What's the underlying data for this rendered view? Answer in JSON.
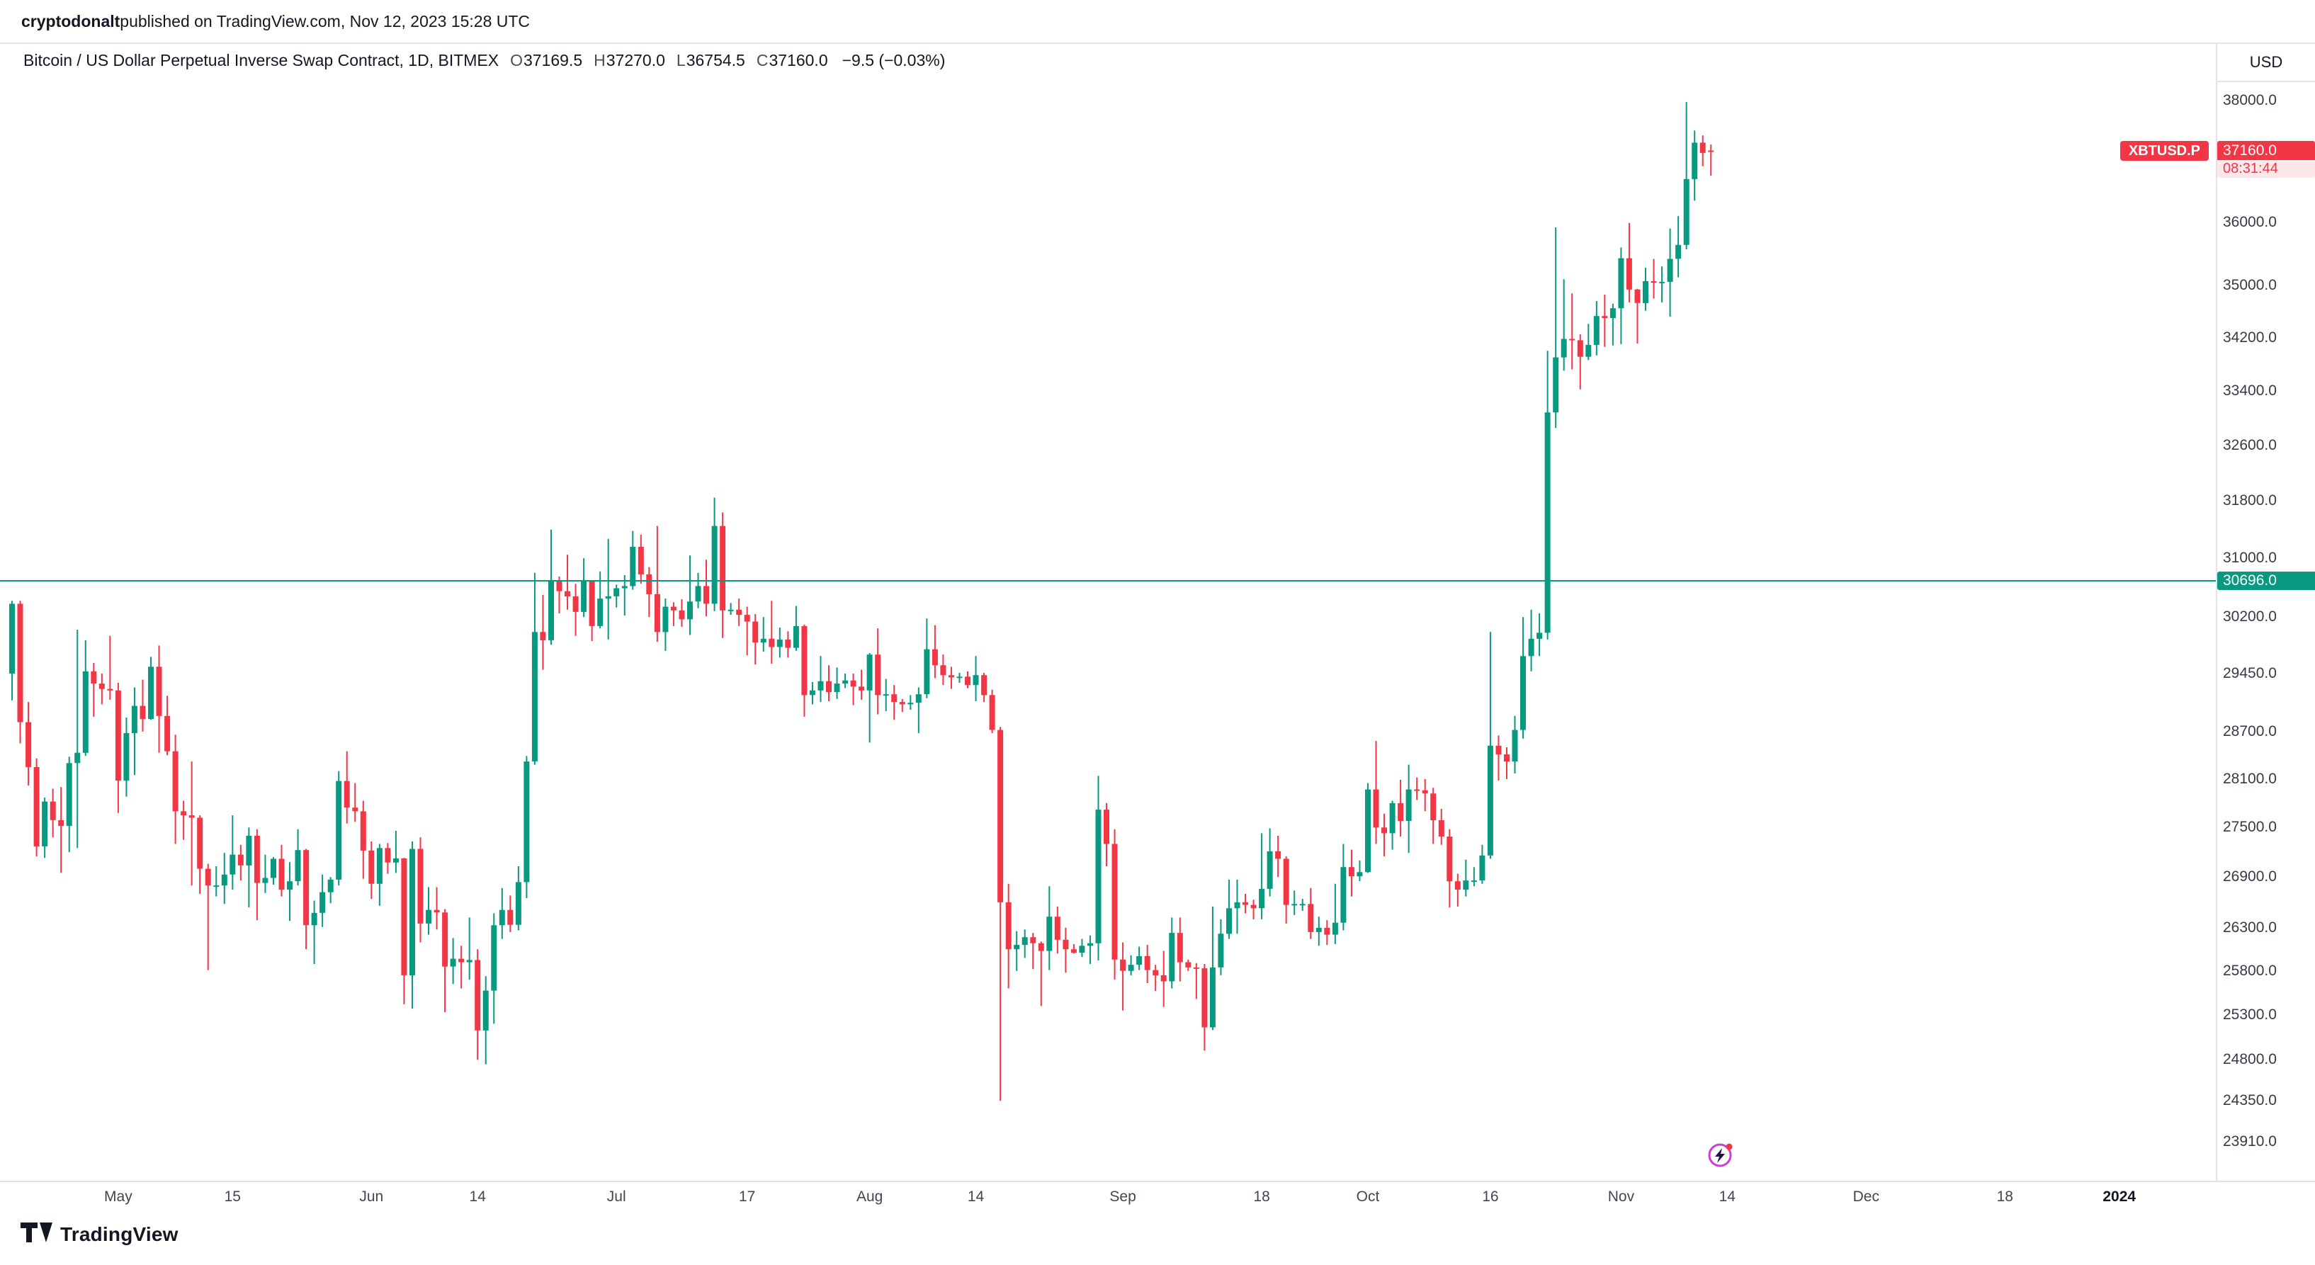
{
  "attribution": {
    "author": "cryptodonalt",
    "rest": " published on TradingView.com, Nov 12, 2023 15:28 UTC"
  },
  "header": {
    "title": "Bitcoin / US Dollar Perpetual Inverse Swap Contract, 1D, BITMEX",
    "ohlc": {
      "o_label": "O",
      "open": "37169.5",
      "h_label": "H",
      "high": "37270.0",
      "l_label": "L",
      "low": "36754.5",
      "c_label": "C",
      "close": "37160.0",
      "change": "−9.5 (−0.03%)"
    }
  },
  "price_axis": {
    "currency": "USD",
    "ticks": [
      "38000.0",
      "36000.0",
      "35000.0",
      "34200.0",
      "33400.0",
      "32600.0",
      "31800.0",
      "31000.0",
      "30200.0",
      "29450.0",
      "28700.0",
      "28100.0",
      "27500.0",
      "26900.0",
      "26300.0",
      "25800.0",
      "25300.0",
      "24800.0",
      "24350.0",
      "23910.0"
    ],
    "last_price_badge": {
      "symbol": "XBTUSD.P",
      "price": "37160.0",
      "countdown": "08:31:44",
      "value": 37160,
      "color": "#f23645"
    },
    "level_badge": {
      "price": "30696.0",
      "value": 30696,
      "color": "#089981"
    }
  },
  "time_axis": {
    "ticks": [
      {
        "label": "May",
        "day": 13
      },
      {
        "label": "15",
        "day": 27
      },
      {
        "label": "Jun",
        "day": 44
      },
      {
        "label": "14",
        "day": 57
      },
      {
        "label": "Jul",
        "day": 74
      },
      {
        "label": "17",
        "day": 90
      },
      {
        "label": "Aug",
        "day": 105
      },
      {
        "label": "14",
        "day": 118
      },
      {
        "label": "Sep",
        "day": 136
      },
      {
        "label": "18",
        "day": 153
      },
      {
        "label": "Oct",
        "day": 166
      },
      {
        "label": "16",
        "day": 181
      },
      {
        "label": "Nov",
        "day": 197
      },
      {
        "label": "14",
        "day": 210
      },
      {
        "label": "Dec",
        "day": 227
      },
      {
        "label": "18",
        "day": 244
      },
      {
        "label": "2024",
        "day": 258
      }
    ]
  },
  "footer": {
    "brand": "TradingView"
  },
  "chart_data": {
    "type": "candlestick",
    "symbol": "XBTUSD.P",
    "exchange": "BITMEX",
    "interval": "1D",
    "title": "Bitcoin / US Dollar Perpetual Inverse Swap Contract",
    "scale": "log",
    "ylim": [
      23500,
      39000
    ],
    "grid": false,
    "up_color": "#089981",
    "down_color": "#f23645",
    "hline": {
      "value": 30696,
      "label": "30696.0",
      "color": "#089981"
    },
    "last_price": 37160,
    "ohlc_format": [
      "open",
      "high",
      "low",
      "close"
    ],
    "ohlc": [
      [
        29450,
        30420,
        29100,
        30380
      ],
      [
        30380,
        30420,
        28550,
        28820
      ],
      [
        28820,
        29080,
        28020,
        28250
      ],
      [
        28250,
        28360,
        27150,
        27270
      ],
      [
        27270,
        27870,
        27130,
        27820
      ],
      [
        27820,
        27980,
        27380,
        27590
      ],
      [
        27590,
        28000,
        26950,
        27520
      ],
      [
        27520,
        28380,
        27200,
        28300
      ],
      [
        28300,
        30030,
        27250,
        28430
      ],
      [
        28430,
        29890,
        28390,
        29480
      ],
      [
        29480,
        29590,
        28890,
        29320
      ],
      [
        29320,
        29450,
        29050,
        29250
      ],
      [
        29250,
        29950,
        29110,
        29230
      ],
      [
        29230,
        29330,
        27680,
        28080
      ],
      [
        28080,
        28880,
        27880,
        28680
      ],
      [
        28680,
        29270,
        28150,
        29030
      ],
      [
        29030,
        29370,
        28700,
        28860
      ],
      [
        28860,
        29670,
        28850,
        29540
      ],
      [
        29540,
        29820,
        28430,
        28900
      ],
      [
        28900,
        29160,
        28400,
        28450
      ],
      [
        28450,
        28660,
        27300,
        27700
      ],
      [
        27700,
        27830,
        27350,
        27650
      ],
      [
        27650,
        28320,
        26800,
        27620
      ],
      [
        27620,
        27650,
        26700,
        27000
      ],
      [
        27000,
        27060,
        25810,
        26800
      ],
      [
        26800,
        27030,
        26670,
        26800
      ],
      [
        26800,
        27190,
        26580,
        26930
      ],
      [
        26930,
        27650,
        26750,
        27170
      ],
      [
        27170,
        27290,
        26860,
        27040
      ],
      [
        27040,
        27500,
        26540,
        27400
      ],
      [
        27400,
        27480,
        26390,
        26830
      ],
      [
        26830,
        27170,
        26710,
        26890
      ],
      [
        26890,
        27140,
        26810,
        27120
      ],
      [
        27120,
        27290,
        26670,
        26750
      ],
      [
        26750,
        27080,
        26380,
        26850
      ],
      [
        26850,
        27480,
        26800,
        27225
      ],
      [
        27225,
        27240,
        26050,
        26330
      ],
      [
        26330,
        26620,
        25880,
        26475
      ],
      [
        26475,
        26930,
        26310,
        26720
      ],
      [
        26720,
        26900,
        26590,
        26870
      ],
      [
        26870,
        28200,
        26800,
        28075
      ],
      [
        28075,
        28450,
        27550,
        27745
      ],
      [
        27745,
        28050,
        27570,
        27700
      ],
      [
        27700,
        27830,
        26880,
        27220
      ],
      [
        27220,
        27330,
        26640,
        26820
      ],
      [
        26820,
        27300,
        26560,
        27250
      ],
      [
        27250,
        27310,
        26940,
        27075
      ],
      [
        27075,
        27460,
        26950,
        27125
      ],
      [
        27125,
        27130,
        25420,
        25750
      ],
      [
        25750,
        27330,
        25370,
        27240
      ],
      [
        27240,
        27380,
        26130,
        26350
      ],
      [
        26350,
        26780,
        26220,
        26510
      ],
      [
        26510,
        26780,
        26280,
        26480
      ],
      [
        26480,
        26520,
        25330,
        25850
      ],
      [
        25850,
        26180,
        25650,
        25940
      ],
      [
        25940,
        26090,
        25600,
        25900
      ],
      [
        25900,
        26420,
        25700,
        25925
      ],
      [
        25925,
        26050,
        24800,
        25125
      ],
      [
        25125,
        25740,
        24750,
        25575
      ],
      [
        25575,
        26470,
        25200,
        26330
      ],
      [
        26330,
        26770,
        26170,
        26510
      ],
      [
        26510,
        26680,
        26250,
        26335
      ],
      [
        26335,
        27030,
        26270,
        26840
      ],
      [
        26840,
        28390,
        26650,
        28320
      ],
      [
        28320,
        30800,
        28280,
        30000
      ],
      [
        30000,
        30500,
        29500,
        29890
      ],
      [
        29890,
        31400,
        29830,
        30700
      ],
      [
        30700,
        30750,
        30250,
        30550
      ],
      [
        30550,
        31050,
        30300,
        30480
      ],
      [
        30480,
        30650,
        29950,
        30270
      ],
      [
        30270,
        31000,
        30200,
        30690
      ],
      [
        30690,
        30700,
        29880,
        30080
      ],
      [
        30080,
        30820,
        30050,
        30450
      ],
      [
        30450,
        31270,
        29900,
        30480
      ],
      [
        30480,
        30640,
        30330,
        30590
      ],
      [
        30590,
        30770,
        30220,
        30620
      ],
      [
        30620,
        31380,
        30570,
        31160
      ],
      [
        31160,
        31330,
        30650,
        30780
      ],
      [
        30780,
        30880,
        30200,
        30510
      ],
      [
        30510,
        31450,
        29870,
        30000
      ],
      [
        30000,
        30450,
        29750,
        30340
      ],
      [
        30340,
        30400,
        30080,
        30290
      ],
      [
        30290,
        30440,
        30070,
        30170
      ],
      [
        30170,
        31040,
        29960,
        30410
      ],
      [
        30410,
        30800,
        30320,
        30620
      ],
      [
        30620,
        30980,
        30210,
        30380
      ],
      [
        30380,
        31850,
        30280,
        31450
      ],
      [
        31450,
        31640,
        29920,
        30290
      ],
      [
        30290,
        30390,
        30230,
        30300
      ],
      [
        30300,
        30450,
        30080,
        30230
      ],
      [
        30230,
        30340,
        29690,
        30140
      ],
      [
        30140,
        30240,
        29570,
        29860
      ],
      [
        29860,
        30200,
        29740,
        29910
      ],
      [
        29910,
        30420,
        29580,
        29800
      ],
      [
        29800,
        30060,
        29660,
        29900
      ],
      [
        29900,
        30010,
        29660,
        29790
      ],
      [
        29790,
        30350,
        29750,
        30080
      ],
      [
        30080,
        30100,
        28890,
        29170
      ],
      [
        29170,
        29340,
        29050,
        29230
      ],
      [
        29230,
        29680,
        29080,
        29350
      ],
      [
        29350,
        29560,
        29090,
        29210
      ],
      [
        29210,
        29530,
        29120,
        29320
      ],
      [
        29320,
        29450,
        29260,
        29360
      ],
      [
        29360,
        29450,
        29040,
        29280
      ],
      [
        29280,
        29500,
        29110,
        29230
      ],
      [
        29230,
        29720,
        28560,
        29700
      ],
      [
        29700,
        30050,
        28920,
        29170
      ],
      [
        29170,
        29380,
        28960,
        29180
      ],
      [
        29180,
        29300,
        28850,
        29080
      ],
      [
        29080,
        29120,
        28950,
        29050
      ],
      [
        29050,
        29170,
        28980,
        29070
      ],
      [
        29070,
        29270,
        28680,
        29180
      ],
      [
        29180,
        30180,
        29130,
        29770
      ],
      [
        29770,
        30090,
        29390,
        29560
      ],
      [
        29560,
        29700,
        29300,
        29430
      ],
      [
        29430,
        29540,
        29250,
        29400
      ],
      [
        29400,
        29460,
        29330,
        29410
      ],
      [
        29410,
        29480,
        29260,
        29300
      ],
      [
        29300,
        29680,
        29090,
        29430
      ],
      [
        29430,
        29460,
        29080,
        29170
      ],
      [
        29170,
        29240,
        28680,
        28720
      ],
      [
        28720,
        28760,
        24350,
        26600
      ],
      [
        26600,
        26820,
        25600,
        26050
      ],
      [
        26050,
        26260,
        25800,
        26100
      ],
      [
        26100,
        26280,
        25950,
        26190
      ],
      [
        26190,
        26240,
        25820,
        26120
      ],
      [
        26120,
        26140,
        25400,
        26030
      ],
      [
        26030,
        26790,
        25810,
        26430
      ],
      [
        26430,
        26550,
        26000,
        26160
      ],
      [
        26160,
        26300,
        25780,
        26050
      ],
      [
        26050,
        26110,
        26000,
        26010
      ],
      [
        26010,
        26170,
        25960,
        26090
      ],
      [
        26090,
        26210,
        25880,
        26120
      ],
      [
        26120,
        28140,
        25920,
        27720
      ],
      [
        27720,
        27800,
        27030,
        27300
      ],
      [
        27300,
        27480,
        25700,
        25930
      ],
      [
        25930,
        26130,
        25350,
        25800
      ],
      [
        25800,
        25980,
        25750,
        25870
      ],
      [
        25870,
        26080,
        25810,
        25970
      ],
      [
        25970,
        26100,
        25660,
        25810
      ],
      [
        25810,
        25870,
        25570,
        25750
      ],
      [
        25750,
        26030,
        25390,
        25680
      ],
      [
        25680,
        26420,
        25600,
        26240
      ],
      [
        26240,
        26420,
        25680,
        25900
      ],
      [
        25900,
        25930,
        25800,
        25840
      ],
      [
        25840,
        25890,
        25480,
        25830
      ],
      [
        25830,
        25880,
        24900,
        25160
      ],
      [
        25160,
        26550,
        25130,
        25840
      ],
      [
        25840,
        26400,
        25750,
        26230
      ],
      [
        26230,
        26870,
        26170,
        26530
      ],
      [
        26530,
        26870,
        26230,
        26600
      ],
      [
        26600,
        26700,
        26470,
        26570
      ],
      [
        26570,
        26630,
        26400,
        26530
      ],
      [
        26530,
        27430,
        26400,
        26760
      ],
      [
        26760,
        27490,
        26670,
        27210
      ],
      [
        27210,
        27400,
        26900,
        27120
      ],
      [
        27120,
        27150,
        26350,
        26570
      ],
      [
        26570,
        26740,
        26450,
        26580
      ],
      [
        26580,
        26640,
        26500,
        26580
      ],
      [
        26580,
        26770,
        26170,
        26250
      ],
      [
        26250,
        26430,
        26090,
        26300
      ],
      [
        26300,
        26390,
        26100,
        26220
      ],
      [
        26220,
        26820,
        26110,
        26360
      ],
      [
        26360,
        27300,
        26270,
        27020
      ],
      [
        27020,
        27230,
        26670,
        26910
      ],
      [
        26910,
        27100,
        26850,
        26960
      ],
      [
        26960,
        28050,
        26950,
        27970
      ],
      [
        27970,
        28580,
        27300,
        27500
      ],
      [
        27500,
        27670,
        27150,
        27430
      ],
      [
        27430,
        27830,
        27230,
        27800
      ],
      [
        27800,
        28090,
        27390,
        27580
      ],
      [
        27580,
        28280,
        27190,
        27970
      ],
      [
        27970,
        28120,
        27840,
        27960
      ],
      [
        27960,
        28100,
        27700,
        27920
      ],
      [
        27920,
        27990,
        27300,
        27590
      ],
      [
        27590,
        27730,
        27290,
        27390
      ],
      [
        27390,
        27480,
        26540,
        26850
      ],
      [
        26850,
        26940,
        26550,
        26750
      ],
      [
        26750,
        27110,
        26670,
        26860
      ],
      [
        26860,
        27020,
        26790,
        26860
      ],
      [
        26860,
        27290,
        26820,
        27160
      ],
      [
        27160,
        30000,
        27120,
        28520
      ],
      [
        28520,
        28650,
        28080,
        28410
      ],
      [
        28410,
        28500,
        28100,
        28320
      ],
      [
        28320,
        28900,
        28170,
        28720
      ],
      [
        28720,
        30200,
        28610,
        29680
      ],
      [
        29680,
        30300,
        29480,
        29910
      ],
      [
        29910,
        30250,
        29680,
        29990
      ],
      [
        29990,
        34000,
        29900,
        33080
      ],
      [
        33080,
        35920,
        32850,
        33900
      ],
      [
        33900,
        35100,
        33700,
        34180
      ],
      [
        34180,
        34880,
        33720,
        34160
      ],
      [
        34160,
        34250,
        33420,
        33910
      ],
      [
        33910,
        34410,
        33860,
        34090
      ],
      [
        34090,
        34760,
        33930,
        34530
      ],
      [
        34530,
        34860,
        34060,
        34500
      ],
      [
        34500,
        34720,
        34080,
        34650
      ],
      [
        34650,
        35600,
        34100,
        35430
      ],
      [
        35430,
        35990,
        34740,
        34940
      ],
      [
        34940,
        34950,
        34110,
        34730
      ],
      [
        34730,
        35280,
        34610,
        35070
      ],
      [
        35070,
        35420,
        34800,
        35050
      ],
      [
        35050,
        35300,
        34740,
        35060
      ],
      [
        35060,
        35900,
        34520,
        35420
      ],
      [
        35420,
        36100,
        35130,
        35640
      ],
      [
        35640,
        37980,
        35570,
        36700
      ],
      [
        36700,
        37500,
        36350,
        37300
      ],
      [
        37300,
        37420,
        36910,
        37130
      ],
      [
        37169.5,
        37270,
        36754.5,
        37160
      ]
    ]
  }
}
